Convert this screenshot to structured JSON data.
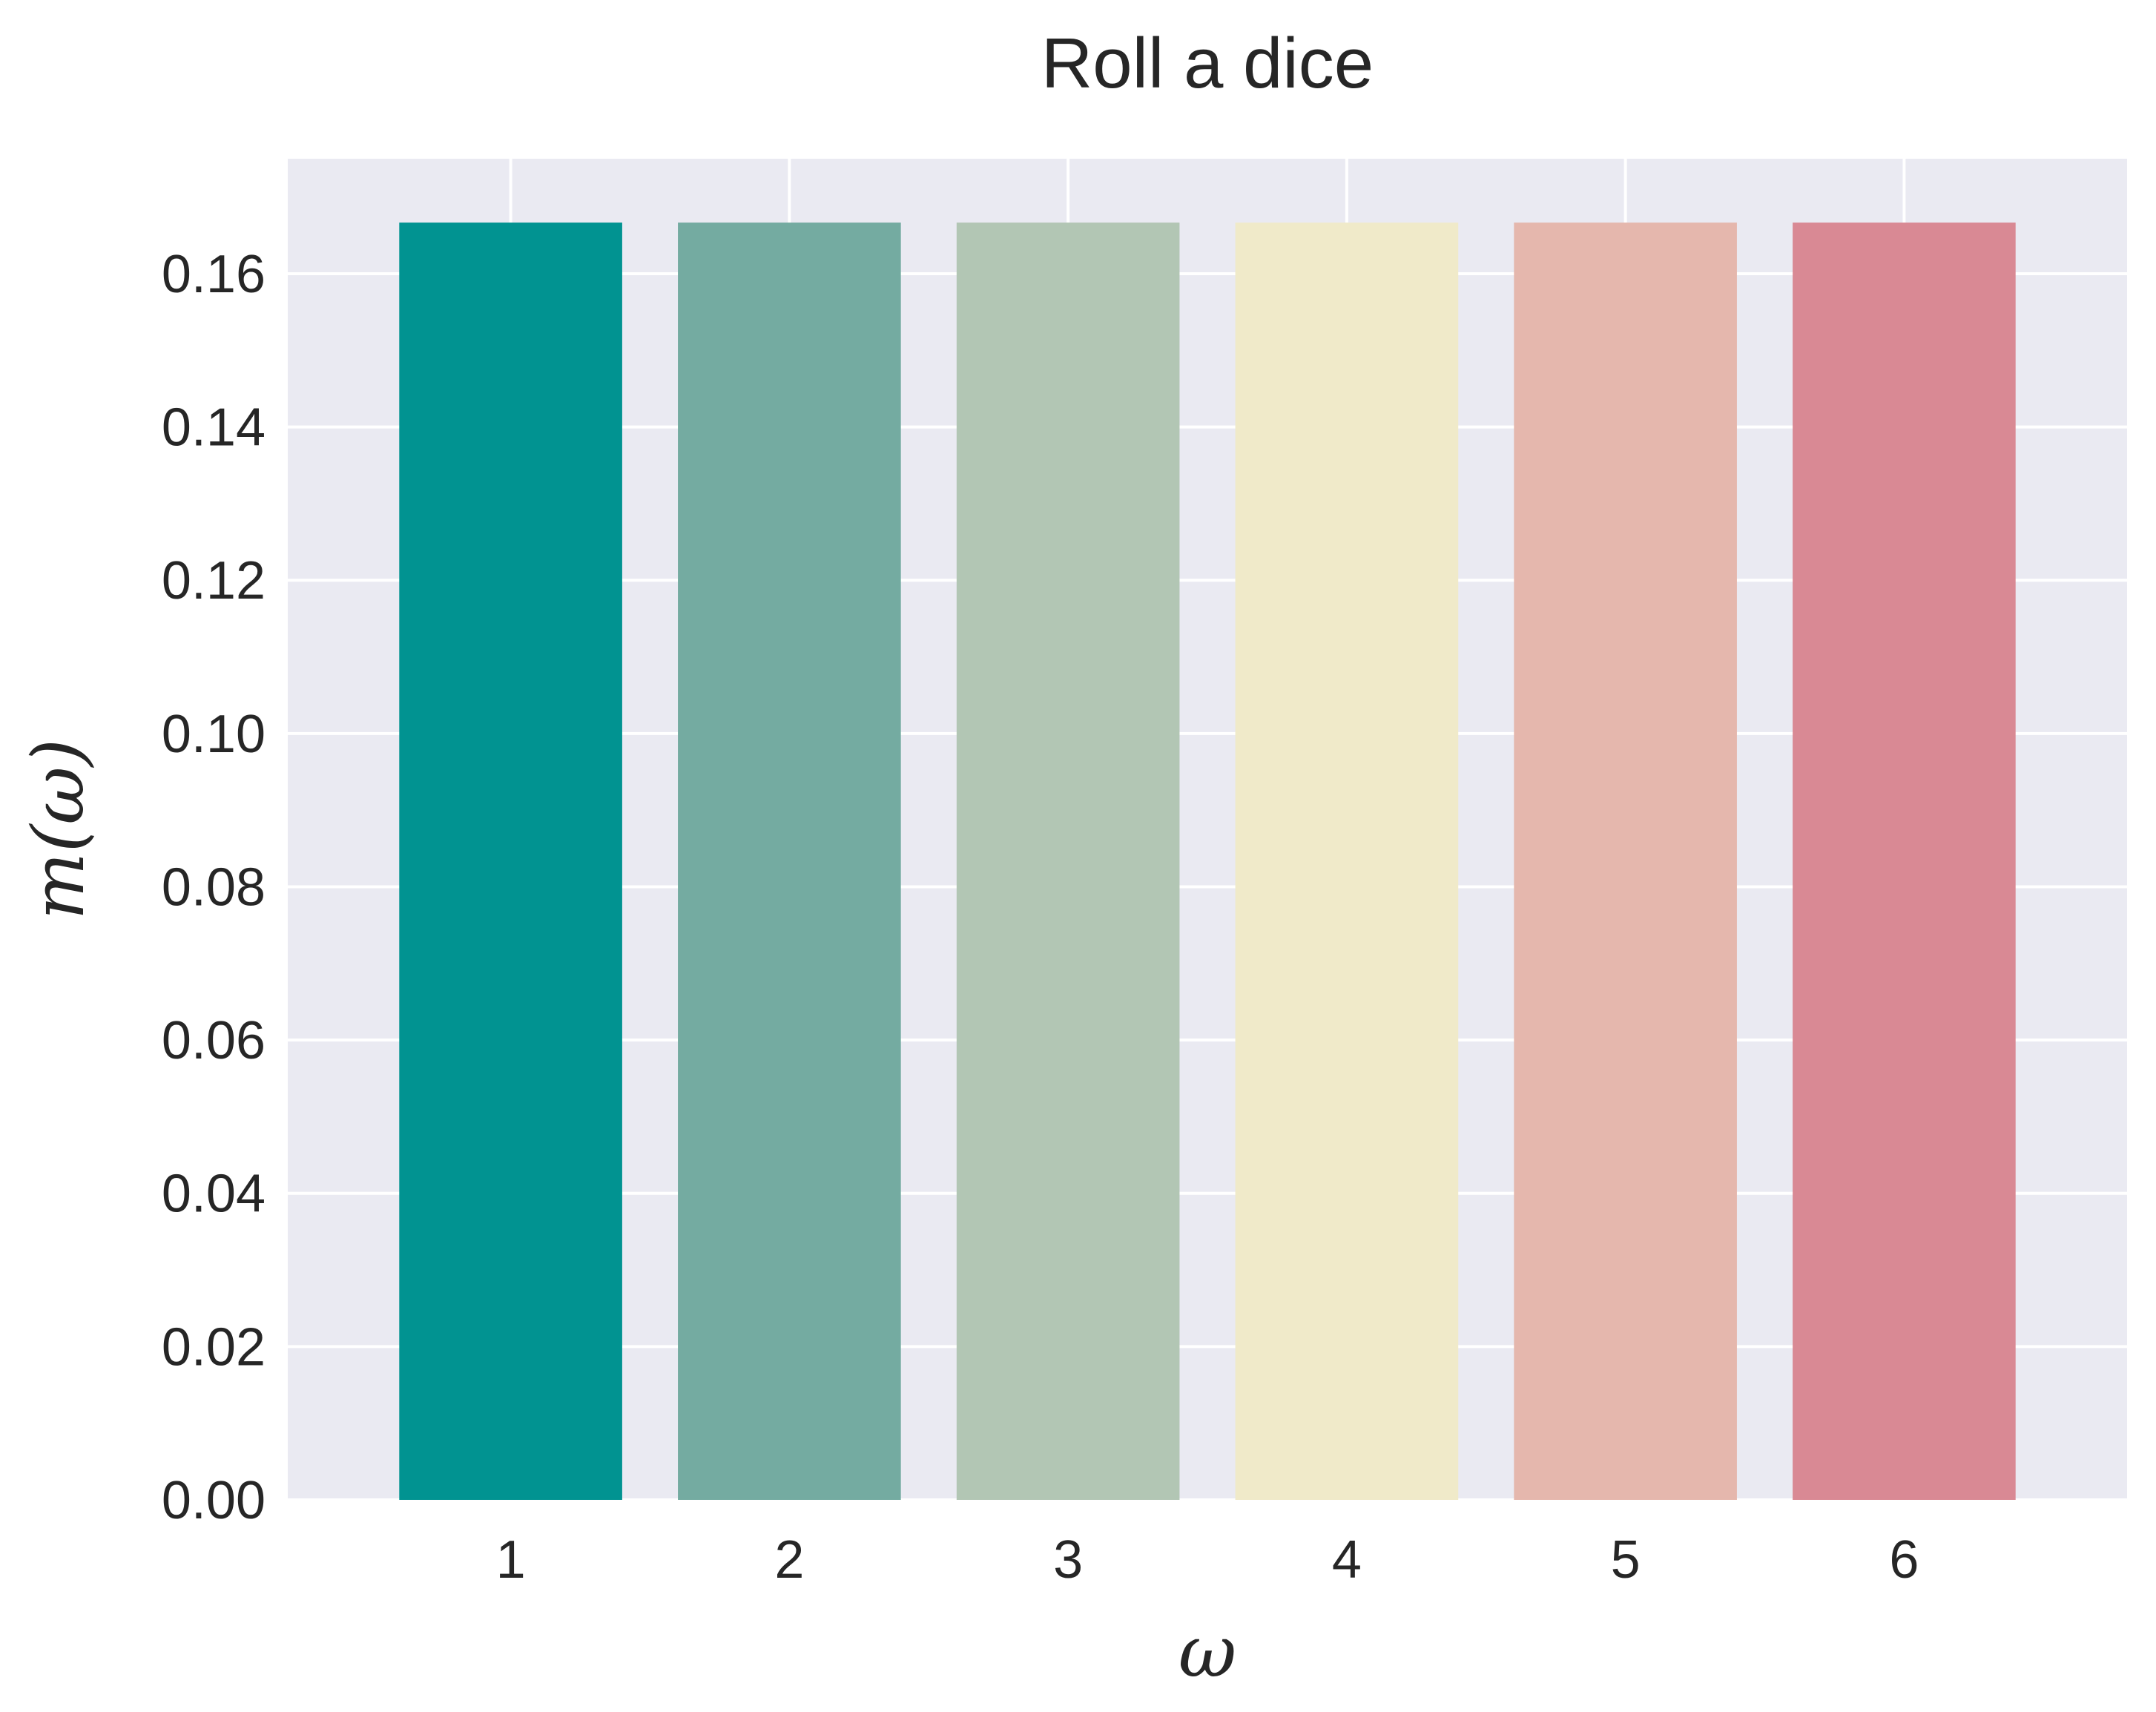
{
  "chart_data": {
    "type": "bar",
    "title": "Roll a dice",
    "xlabel": "ω",
    "ylabel": "m(ω)",
    "categories": [
      "1",
      "2",
      "3",
      "4",
      "5",
      "6"
    ],
    "values": [
      0.16667,
      0.16667,
      0.16667,
      0.16667,
      0.16667,
      0.16667
    ],
    "colors": [
      "#019391",
      "#74aba1",
      "#b2c6b4",
      "#f0eac9",
      "#e5b7ad",
      "#d98994"
    ],
    "ylim": [
      0,
      0.175
    ],
    "yticks": [
      0.0,
      0.02,
      0.04,
      0.06,
      0.08,
      0.1,
      0.12,
      0.14,
      0.16
    ],
    "ytick_labels": [
      "0.00",
      "0.02",
      "0.04",
      "0.06",
      "0.08",
      "0.10",
      "0.12",
      "0.14",
      "0.16"
    ],
    "grid": true,
    "legend": false,
    "style": {
      "plot_background": "#eaeaf2",
      "grid_color": "#ffffff",
      "text_color": "#262626"
    }
  }
}
